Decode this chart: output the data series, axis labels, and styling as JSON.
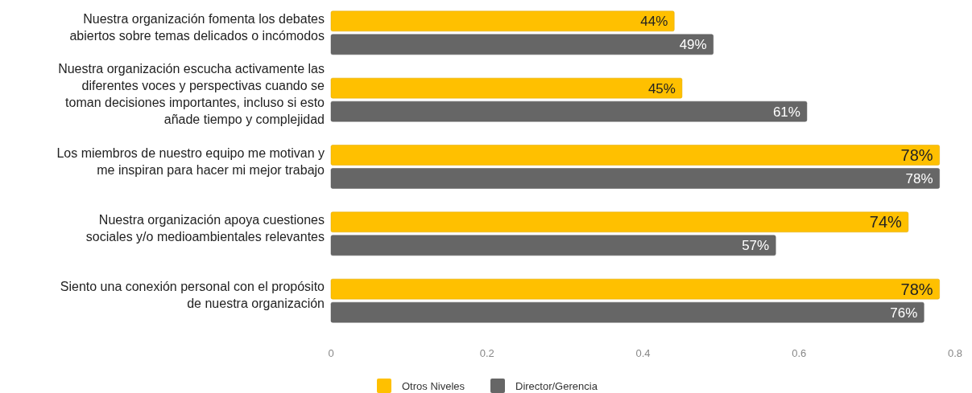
{
  "chart_data": {
    "type": "bar",
    "orientation": "horizontal",
    "categories": [
      "Nuestra organización fomenta los debates abiertos sobre temas delicados o incómodos",
      "Nuestra organización escucha activamente las diferentes voces y perspectivas cuando se toman decisiones importantes, incluso si esto añade tiempo y complejidad",
      "Los miembros de nuestro equipo me motivan y me inspiran para hacer mi mejor trabajo",
      "Nuestra organización apoya cuestiones sociales y/o medioambientales relevantes",
      "Siento una conexión personal con el propósito de nuestra organización"
    ],
    "series": [
      {
        "name": "Otros Niveles",
        "color": "#ffc000",
        "values": [
          0.44,
          0.45,
          0.78,
          0.74,
          0.78
        ],
        "value_labels": [
          "44%",
          "45%",
          "78%",
          "74%",
          "78%"
        ]
      },
      {
        "name": "Director/Gerencia",
        "color": "#666666",
        "values": [
          0.49,
          0.61,
          0.78,
          0.57,
          0.76
        ],
        "value_labels": [
          "49%",
          "61%",
          "78%",
          "57%",
          "76%"
        ]
      }
    ],
    "xlim": [
      0,
      0.8
    ],
    "xticks": [
      0,
      0.2,
      0.4,
      0.6,
      0.8
    ],
    "legend": "bottom",
    "grid": false
  }
}
